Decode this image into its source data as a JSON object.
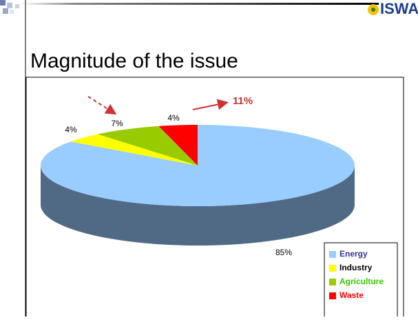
{
  "slide": {
    "logo": "ISWA",
    "title": "Magnitude of the issue"
  },
  "chart_data": {
    "type": "pie3d",
    "series": [
      {
        "name": "Energy",
        "color": "#99ccff",
        "label_color": "#333399",
        "values": [
          85
        ],
        "value_labels": [
          "85%"
        ]
      },
      {
        "name": "Industry",
        "color": "#ffff00",
        "label_color": "#000000",
        "values": [
          4
        ],
        "value_labels": [
          "4%"
        ]
      },
      {
        "name": "Agriculture",
        "color": "#99cc00",
        "label_color": "#33cc00",
        "values": [
          7
        ],
        "value_labels": [
          "7%"
        ]
      },
      {
        "name": "Waste",
        "color": "#ff0000",
        "label_color": "#ff0000",
        "values": [
          4
        ],
        "value_labels": [
          "4%"
        ]
      }
    ],
    "annotation": "11%",
    "legend": "bottom-right"
  }
}
